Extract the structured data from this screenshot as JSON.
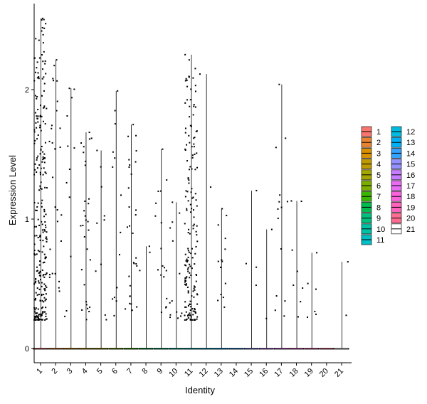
{
  "chart_data": {
    "type": "violin",
    "xlabel": "Identity",
    "ylabel": "Expression Level",
    "ylim": [
      -0.12,
      2.67
    ],
    "yticks": [
      0,
      1,
      2
    ],
    "grid": false,
    "legend_position": "right",
    "categories": [
      "1",
      "2",
      "3",
      "4",
      "5",
      "6",
      "7",
      "8",
      "9",
      "10",
      "11",
      "12",
      "13",
      "14",
      "15",
      "16",
      "17",
      "18",
      "19",
      "20",
      "21"
    ],
    "colors": [
      "#F8766D",
      "#EA8331",
      "#D89000",
      "#C09B00",
      "#A3A500",
      "#7CAE00",
      "#39B600",
      "#00BB4E",
      "#00BF7D",
      "#00C1A3",
      "#00BFC4",
      "#00BAE0",
      "#00B0F6",
      "#35A2FF",
      "#9590FF",
      "#C77CFF",
      "#E76BF3",
      "#FA62DB",
      "#FF62BC",
      "#FF6C91",
      "#FFFFFF"
    ],
    "max_values": [
      2.55,
      2.23,
      2.01,
      1.67,
      1.53,
      1.99,
      1.73,
      0.79,
      1.54,
      1.13,
      2.27,
      2.12,
      1.08,
      0,
      1.22,
      0.92,
      2.04,
      1.14,
      0.74,
      0,
      0.67
    ],
    "point_counts": [
      260,
      28,
      12,
      30,
      10,
      14,
      30,
      3,
      18,
      14,
      180,
      2,
      14,
      0,
      4,
      2,
      14,
      8,
      6,
      0,
      2
    ],
    "legend": {
      "columns": [
        [
          "1",
          "2",
          "3",
          "4",
          "5",
          "6",
          "7",
          "8",
          "9",
          "10",
          "11"
        ],
        [
          "12",
          "13",
          "14",
          "15",
          "16",
          "17",
          "18",
          "19",
          "20",
          "21"
        ]
      ]
    }
  }
}
